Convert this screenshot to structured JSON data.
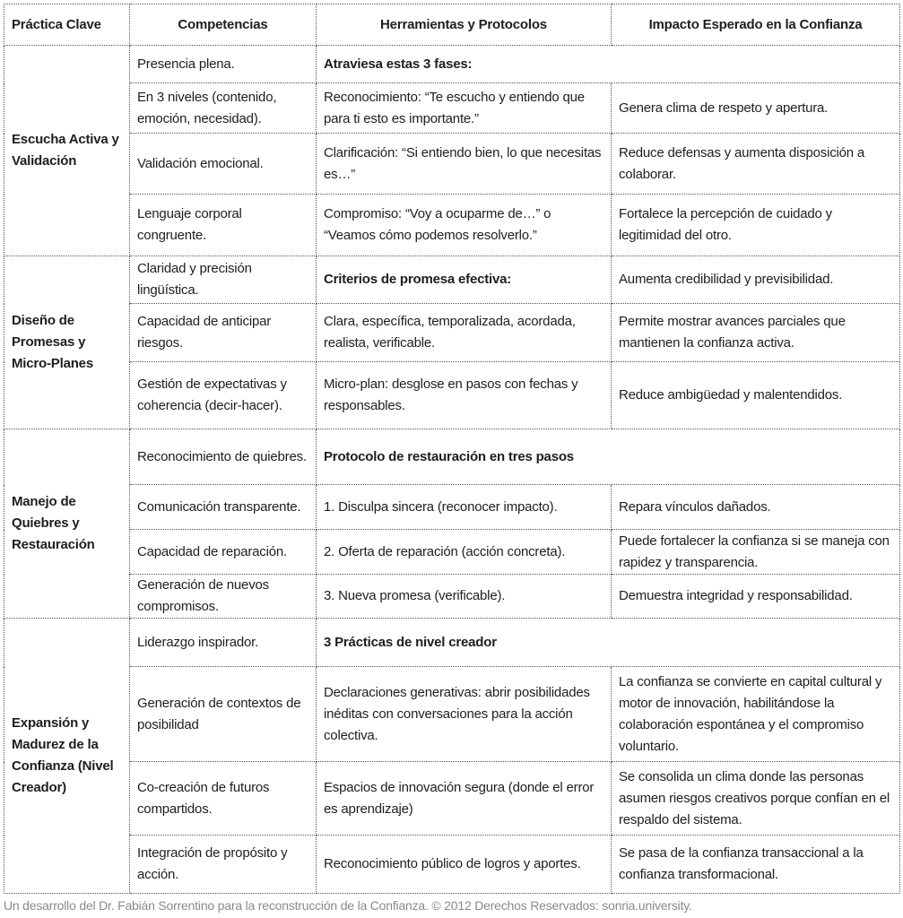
{
  "headers": [
    "Práctica Clave",
    "Competencias",
    "Herramientas y Protocolos",
    "Impacto Esperado en la Confianza"
  ],
  "groups": [
    {
      "practice": "Escucha Activa y Validación",
      "rows": [
        {
          "competence": "Presencia plena.",
          "tool": "Atraviesa estas 3 fases:",
          "impact": null
        },
        {
          "competence": "En 3 niveles (contenido, emoción, necesidad).",
          "tool": "Reconocimiento: “Te escucho y entiendo que para ti esto es importante.”",
          "impact": "Genera clima de respeto y apertura."
        },
        {
          "competence": "Validación emocional.",
          "tool": "Clarificación: “Si entiendo bien, lo que necesitas es…”",
          "impact": "Reduce defensas y aumenta disposición a colaborar."
        },
        {
          "competence": "Lenguaje corporal congruente.",
          "tool": "Compromiso: “Voy a ocuparme de…” o “Veamos cómo podemos resolverlo.”",
          "impact": "Fortalece la percepción de cuidado y legitimidad del otro."
        }
      ]
    },
    {
      "practice": "Diseño de Promesas y Micro-Planes",
      "rows": [
        {
          "competence": "Claridad y precisión lingüística.",
          "tool": "Criterios de promesa efectiva:",
          "impact": "Aumenta credibilidad y previsibilidad."
        },
        {
          "competence": "Capacidad de anticipar riesgos.",
          "tool": "Clara, específica, temporalizada, acordada, realista, verificable.",
          "impact": "Permite mostrar avances parciales que mantienen la confianza activa."
        },
        {
          "competence": "Gestión de expectativas y coherencia (decir-hacer).",
          "tool": "Micro-plan: desglose en pasos con fechas y responsables.",
          "impact": "Reduce ambigüedad y malentendidos."
        }
      ]
    },
    {
      "practice": "Manejo de Quiebres y Restauración",
      "rows": [
        {
          "competence": "Reconocimiento de quiebres.",
          "tool": "Protocolo de restauración en tres pasos",
          "impact": null
        },
        {
          "competence": "Comunicación transparente.",
          "tool": "1. Disculpa sincera (reconocer impacto).",
          "impact": "Repara vínculos dañados."
        },
        {
          "competence": "Capacidad de reparación.",
          "tool": "2. Oferta de reparación (acción concreta).",
          "impact": "Puede fortalecer la confianza si se maneja con rapidez y transparencia."
        },
        {
          "competence": "Generación de nuevos compromisos.",
          "tool": "3. Nueva promesa (verificable).",
          "impact": "Demuestra integridad y responsabilidad."
        }
      ]
    },
    {
      "practice": "Expansión y Madurez de la Confianza (Nivel Creador)",
      "rows": [
        {
          "competence": "Liderazgo inspirador.",
          "tool": "3 Prácticas de nivel creador",
          "impact": null
        },
        {
          "competence": "Generación de contextos de posibilidad",
          "tool": "Declaraciones generativas: abrir posibilidades inéditas con conversaciones para la acción colectiva.",
          "impact": "La confianza se convierte en capital cultural y motor de innovación, habilitándose la colaboración espontánea y el compromiso voluntario."
        },
        {
          "competence": "Co-creación de futuros compartidos.",
          "tool": "Espacios de innovación segura (donde el error es aprendizaje)",
          "impact": "Se consolida un clima donde las personas asumen riesgos creativos porque confían en el respaldo del sistema."
        },
        {
          "competence": "Integración de propósito y acción.",
          "tool": "Reconocimiento público de logros y aportes.",
          "impact": "Se pasa de la confianza transaccional a la confianza transformacional."
        }
      ]
    }
  ],
  "footer": "Un desarrollo del Dr. Fabián Sorrentino para la reconstrucción de la Confianza.  © 2012 Derechos Reservados: sonria.university."
}
